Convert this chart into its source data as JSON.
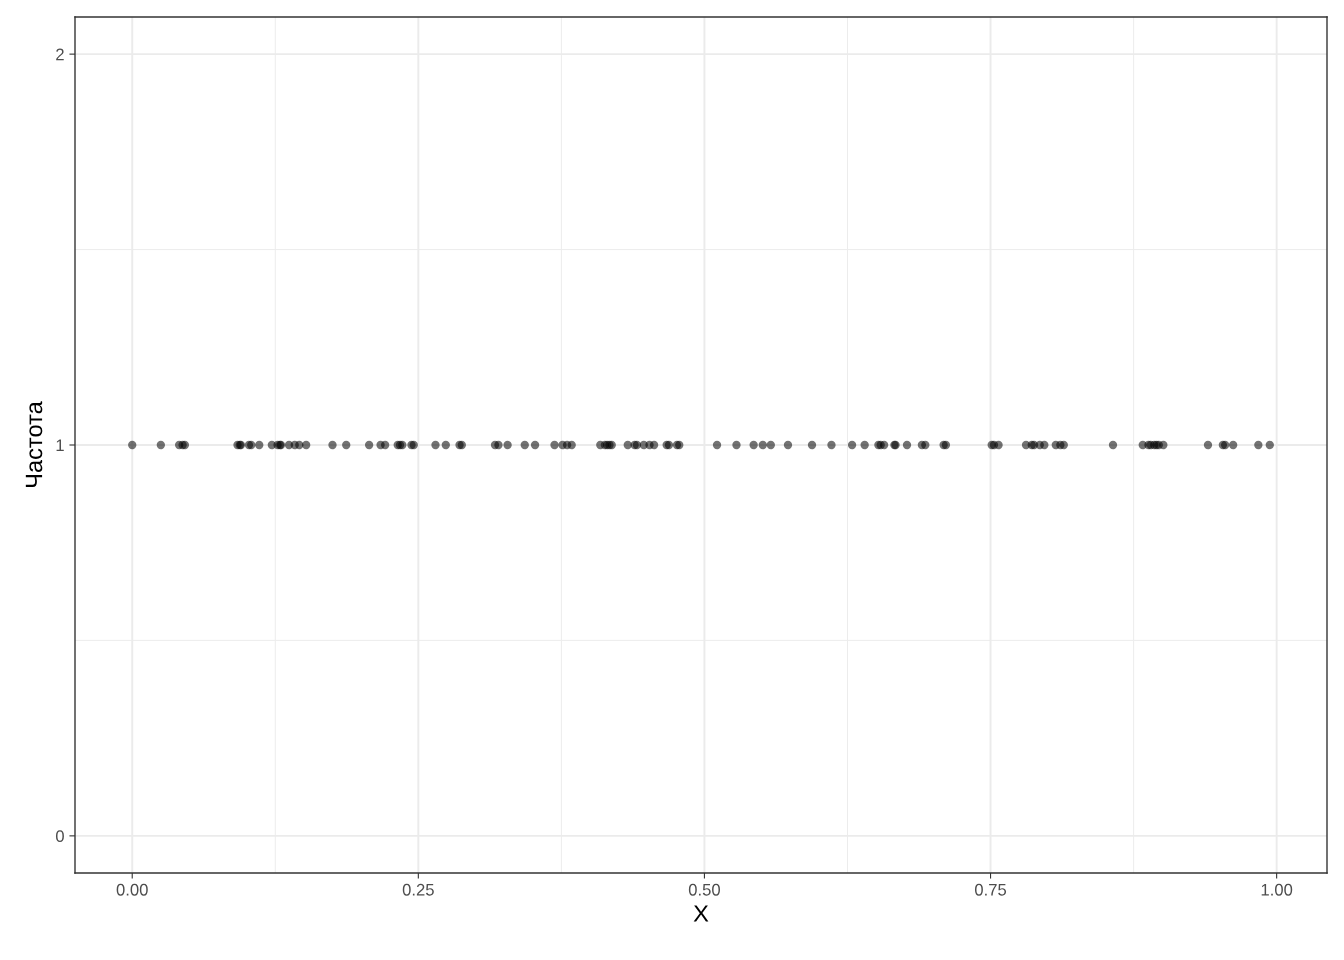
{
  "chart_data": {
    "type": "scatter",
    "xlabel": "X",
    "ylabel": "Частота",
    "x": [
      0.0,
      0.025,
      0.041,
      0.044,
      0.046,
      0.092,
      0.094,
      0.095,
      0.102,
      0.104,
      0.111,
      0.122,
      0.127,
      0.129,
      0.13,
      0.137,
      0.142,
      0.146,
      0.152,
      0.175,
      0.187,
      0.207,
      0.217,
      0.221,
      0.232,
      0.234,
      0.236,
      0.244,
      0.246,
      0.265,
      0.274,
      0.286,
      0.288,
      0.317,
      0.32,
      0.328,
      0.343,
      0.352,
      0.369,
      0.376,
      0.38,
      0.384,
      0.409,
      0.413,
      0.415,
      0.417,
      0.419,
      0.433,
      0.439,
      0.441,
      0.447,
      0.452,
      0.456,
      0.467,
      0.469,
      0.476,
      0.478,
      0.511,
      0.528,
      0.543,
      0.551,
      0.558,
      0.573,
      0.594,
      0.611,
      0.629,
      0.64,
      0.652,
      0.654,
      0.657,
      0.666,
      0.667,
      0.677,
      0.69,
      0.693,
      0.709,
      0.711,
      0.751,
      0.753,
      0.757,
      0.781,
      0.786,
      0.788,
      0.793,
      0.797,
      0.807,
      0.811,
      0.814,
      0.857,
      0.883,
      0.888,
      0.89,
      0.893,
      0.895,
      0.897,
      0.901,
      0.94,
      0.953,
      0.955,
      0.962,
      0.984,
      0.994
    ],
    "values": [
      1,
      1,
      1,
      1,
      1,
      1,
      1,
      1,
      1,
      1,
      1,
      1,
      1,
      1,
      1,
      1,
      1,
      1,
      1,
      1,
      1,
      1,
      1,
      1,
      1,
      1,
      1,
      1,
      1,
      1,
      1,
      1,
      1,
      1,
      1,
      1,
      1,
      1,
      1,
      1,
      1,
      1,
      1,
      1,
      1,
      1,
      1,
      1,
      1,
      1,
      1,
      1,
      1,
      1,
      1,
      1,
      1,
      1,
      1,
      1,
      1,
      1,
      1,
      1,
      1,
      1,
      1,
      1,
      1,
      1,
      1,
      1,
      1,
      1,
      1,
      1,
      1,
      1,
      1,
      1,
      1,
      1,
      1,
      1,
      1,
      1,
      1,
      1,
      1,
      1,
      1,
      1,
      1,
      1,
      1,
      1,
      1,
      1,
      1,
      1,
      1,
      1
    ],
    "color": "#000000",
    "marker": "circle",
    "xlim": [
      -0.05,
      1.044
    ],
    "ylim": [
      -0.095,
      2.095
    ],
    "xticks": [
      {
        "value": 0,
        "label": "0.00"
      },
      {
        "value": 0.25,
        "label": "0.25"
      },
      {
        "value": 0.5,
        "label": "0.50"
      },
      {
        "value": 0.75,
        "label": "0.75"
      },
      {
        "value": 1,
        "label": "1.00"
      }
    ],
    "yticks": [
      0,
      1,
      2
    ],
    "grid": true
  }
}
